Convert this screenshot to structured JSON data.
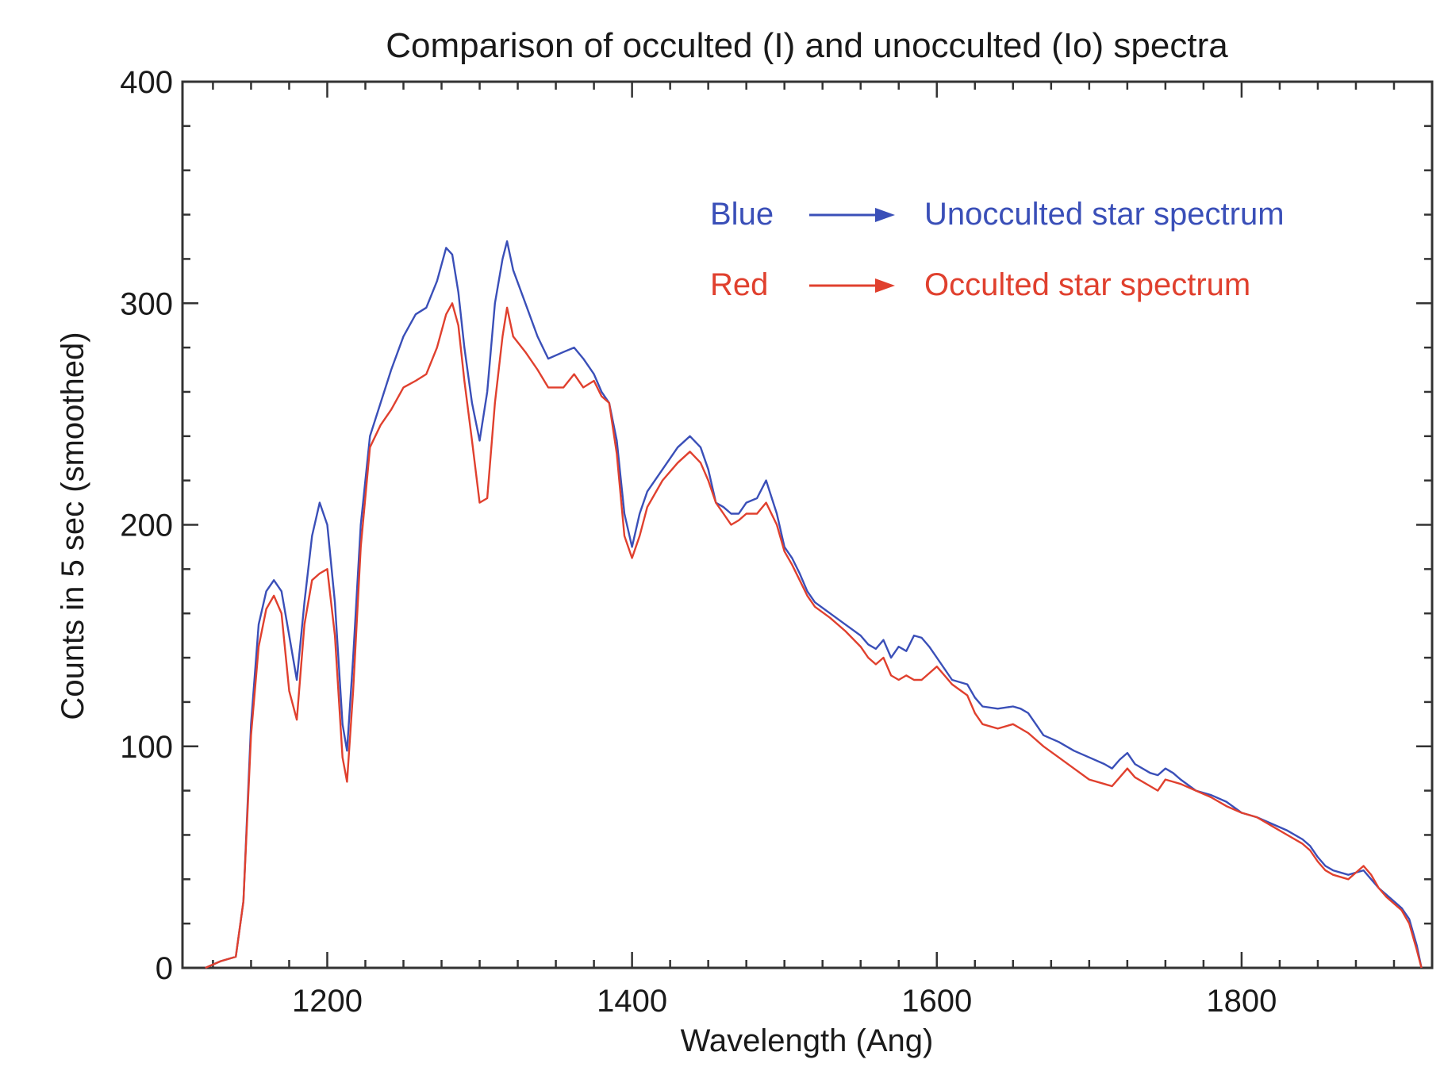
{
  "chart_data": {
    "type": "line",
    "title": "Comparison of occulted (I) and unocculted (Io) spectra",
    "xlabel": "Wavelength (Ang)",
    "ylabel": "Counts in 5 sec (smoothed)",
    "xlim": [
      1105,
      1925
    ],
    "ylim": [
      0,
      400
    ],
    "x_ticks": [
      1200,
      1400,
      1600,
      1800
    ],
    "y_ticks": [
      0,
      100,
      200,
      300,
      400
    ],
    "x_minor_step": 25,
    "y_minor_step": 20,
    "grid": false,
    "legend": {
      "position": "top-right",
      "entries": [
        {
          "key": "Blue",
          "label": "Unocculted star spectrum",
          "color": "#3a4fb8"
        },
        {
          "key": "Red",
          "label": "Occulted star spectrum",
          "color": "#e0402e"
        }
      ]
    },
    "series": [
      {
        "name": "Unocculted star spectrum",
        "color": "#3a4fb8",
        "points": [
          [
            1120,
            0
          ],
          [
            1130,
            3
          ],
          [
            1140,
            5
          ],
          [
            1145,
            30
          ],
          [
            1150,
            110
          ],
          [
            1155,
            155
          ],
          [
            1160,
            170
          ],
          [
            1165,
            175
          ],
          [
            1170,
            170
          ],
          [
            1175,
            150
          ],
          [
            1180,
            130
          ],
          [
            1185,
            165
          ],
          [
            1190,
            195
          ],
          [
            1195,
            210
          ],
          [
            1200,
            200
          ],
          [
            1205,
            165
          ],
          [
            1210,
            110
          ],
          [
            1213,
            98
          ],
          [
            1217,
            140
          ],
          [
            1222,
            200
          ],
          [
            1228,
            240
          ],
          [
            1235,
            255
          ],
          [
            1242,
            270
          ],
          [
            1250,
            285
          ],
          [
            1258,
            295
          ],
          [
            1265,
            298
          ],
          [
            1272,
            310
          ],
          [
            1278,
            325
          ],
          [
            1282,
            322
          ],
          [
            1286,
            305
          ],
          [
            1290,
            280
          ],
          [
            1295,
            255
          ],
          [
            1300,
            238
          ],
          [
            1305,
            260
          ],
          [
            1310,
            300
          ],
          [
            1315,
            320
          ],
          [
            1318,
            328
          ],
          [
            1322,
            315
          ],
          [
            1330,
            300
          ],
          [
            1338,
            285
          ],
          [
            1345,
            275
          ],
          [
            1355,
            278
          ],
          [
            1362,
            280
          ],
          [
            1368,
            275
          ],
          [
            1375,
            268
          ],
          [
            1380,
            260
          ],
          [
            1385,
            255
          ],
          [
            1390,
            238
          ],
          [
            1395,
            205
          ],
          [
            1400,
            190
          ],
          [
            1405,
            205
          ],
          [
            1410,
            215
          ],
          [
            1420,
            225
          ],
          [
            1430,
            235
          ],
          [
            1438,
            240
          ],
          [
            1445,
            235
          ],
          [
            1450,
            225
          ],
          [
            1455,
            210
          ],
          [
            1460,
            208
          ],
          [
            1465,
            205
          ],
          [
            1470,
            205
          ],
          [
            1475,
            210
          ],
          [
            1482,
            212
          ],
          [
            1488,
            220
          ],
          [
            1495,
            205
          ],
          [
            1500,
            190
          ],
          [
            1505,
            185
          ],
          [
            1510,
            178
          ],
          [
            1515,
            170
          ],
          [
            1520,
            165
          ],
          [
            1530,
            160
          ],
          [
            1540,
            155
          ],
          [
            1550,
            150
          ],
          [
            1555,
            146
          ],
          [
            1560,
            144
          ],
          [
            1565,
            148
          ],
          [
            1570,
            140
          ],
          [
            1575,
            145
          ],
          [
            1580,
            143
          ],
          [
            1585,
            150
          ],
          [
            1590,
            149
          ],
          [
            1595,
            145
          ],
          [
            1600,
            140
          ],
          [
            1605,
            135
          ],
          [
            1610,
            130
          ],
          [
            1620,
            128
          ],
          [
            1625,
            122
          ],
          [
            1630,
            118
          ],
          [
            1640,
            117
          ],
          [
            1650,
            118
          ],
          [
            1655,
            117
          ],
          [
            1660,
            115
          ],
          [
            1665,
            110
          ],
          [
            1670,
            105
          ],
          [
            1680,
            102
          ],
          [
            1690,
            98
          ],
          [
            1700,
            95
          ],
          [
            1710,
            92
          ],
          [
            1715,
            90
          ],
          [
            1720,
            94
          ],
          [
            1725,
            97
          ],
          [
            1730,
            92
          ],
          [
            1740,
            88
          ],
          [
            1745,
            87
          ],
          [
            1750,
            90
          ],
          [
            1755,
            88
          ],
          [
            1760,
            85
          ],
          [
            1770,
            80
          ],
          [
            1780,
            78
          ],
          [
            1790,
            75
          ],
          [
            1800,
            70
          ],
          [
            1810,
            68
          ],
          [
            1820,
            65
          ],
          [
            1830,
            62
          ],
          [
            1840,
            58
          ],
          [
            1845,
            55
          ],
          [
            1850,
            50
          ],
          [
            1855,
            46
          ],
          [
            1860,
            44
          ],
          [
            1870,
            42
          ],
          [
            1875,
            43
          ],
          [
            1880,
            44
          ],
          [
            1885,
            40
          ],
          [
            1890,
            36
          ],
          [
            1895,
            33
          ],
          [
            1900,
            30
          ],
          [
            1905,
            27
          ],
          [
            1910,
            22
          ],
          [
            1915,
            10
          ],
          [
            1918,
            0
          ]
        ]
      },
      {
        "name": "Occulted star spectrum",
        "color": "#e0402e",
        "points": [
          [
            1120,
            0
          ],
          [
            1130,
            3
          ],
          [
            1140,
            5
          ],
          [
            1145,
            30
          ],
          [
            1150,
            105
          ],
          [
            1155,
            145
          ],
          [
            1160,
            162
          ],
          [
            1165,
            168
          ],
          [
            1170,
            160
          ],
          [
            1175,
            125
          ],
          [
            1180,
            112
          ],
          [
            1185,
            155
          ],
          [
            1190,
            175
          ],
          [
            1195,
            178
          ],
          [
            1200,
            180
          ],
          [
            1205,
            150
          ],
          [
            1210,
            95
          ],
          [
            1213,
            84
          ],
          [
            1217,
            125
          ],
          [
            1222,
            190
          ],
          [
            1228,
            235
          ],
          [
            1235,
            245
          ],
          [
            1242,
            252
          ],
          [
            1250,
            262
          ],
          [
            1258,
            265
          ],
          [
            1265,
            268
          ],
          [
            1272,
            280
          ],
          [
            1278,
            295
          ],
          [
            1282,
            300
          ],
          [
            1286,
            290
          ],
          [
            1290,
            265
          ],
          [
            1295,
            238
          ],
          [
            1300,
            210
          ],
          [
            1305,
            212
          ],
          [
            1310,
            255
          ],
          [
            1315,
            285
          ],
          [
            1318,
            298
          ],
          [
            1322,
            285
          ],
          [
            1330,
            278
          ],
          [
            1338,
            270
          ],
          [
            1345,
            262
          ],
          [
            1355,
            262
          ],
          [
            1362,
            268
          ],
          [
            1368,
            262
          ],
          [
            1375,
            265
          ],
          [
            1380,
            258
          ],
          [
            1385,
            255
          ],
          [
            1390,
            232
          ],
          [
            1395,
            195
          ],
          [
            1400,
            185
          ],
          [
            1405,
            195
          ],
          [
            1410,
            208
          ],
          [
            1420,
            220
          ],
          [
            1430,
            228
          ],
          [
            1438,
            233
          ],
          [
            1445,
            228
          ],
          [
            1450,
            220
          ],
          [
            1455,
            210
          ],
          [
            1460,
            205
          ],
          [
            1465,
            200
          ],
          [
            1470,
            202
          ],
          [
            1475,
            205
          ],
          [
            1482,
            205
          ],
          [
            1488,
            210
          ],
          [
            1495,
            200
          ],
          [
            1500,
            188
          ],
          [
            1505,
            182
          ],
          [
            1510,
            175
          ],
          [
            1515,
            168
          ],
          [
            1520,
            163
          ],
          [
            1530,
            158
          ],
          [
            1540,
            152
          ],
          [
            1550,
            145
          ],
          [
            1555,
            140
          ],
          [
            1560,
            137
          ],
          [
            1565,
            140
          ],
          [
            1570,
            132
          ],
          [
            1575,
            130
          ],
          [
            1580,
            132
          ],
          [
            1585,
            130
          ],
          [
            1590,
            130
          ],
          [
            1595,
            133
          ],
          [
            1600,
            136
          ],
          [
            1605,
            132
          ],
          [
            1610,
            128
          ],
          [
            1620,
            123
          ],
          [
            1625,
            115
          ],
          [
            1630,
            110
          ],
          [
            1640,
            108
          ],
          [
            1650,
            110
          ],
          [
            1655,
            108
          ],
          [
            1660,
            106
          ],
          [
            1665,
            103
          ],
          [
            1670,
            100
          ],
          [
            1680,
            95
          ],
          [
            1690,
            90
          ],
          [
            1700,
            85
          ],
          [
            1710,
            83
          ],
          [
            1715,
            82
          ],
          [
            1720,
            86
          ],
          [
            1725,
            90
          ],
          [
            1730,
            86
          ],
          [
            1740,
            82
          ],
          [
            1745,
            80
          ],
          [
            1750,
            85
          ],
          [
            1755,
            84
          ],
          [
            1760,
            83
          ],
          [
            1770,
            80
          ],
          [
            1780,
            77
          ],
          [
            1790,
            73
          ],
          [
            1800,
            70
          ],
          [
            1810,
            68
          ],
          [
            1820,
            64
          ],
          [
            1830,
            60
          ],
          [
            1840,
            56
          ],
          [
            1845,
            53
          ],
          [
            1850,
            48
          ],
          [
            1855,
            44
          ],
          [
            1860,
            42
          ],
          [
            1870,
            40
          ],
          [
            1875,
            43
          ],
          [
            1880,
            46
          ],
          [
            1885,
            42
          ],
          [
            1890,
            36
          ],
          [
            1895,
            32
          ],
          [
            1900,
            29
          ],
          [
            1905,
            26
          ],
          [
            1910,
            20
          ],
          [
            1915,
            8
          ],
          [
            1918,
            0
          ]
        ]
      }
    ]
  }
}
